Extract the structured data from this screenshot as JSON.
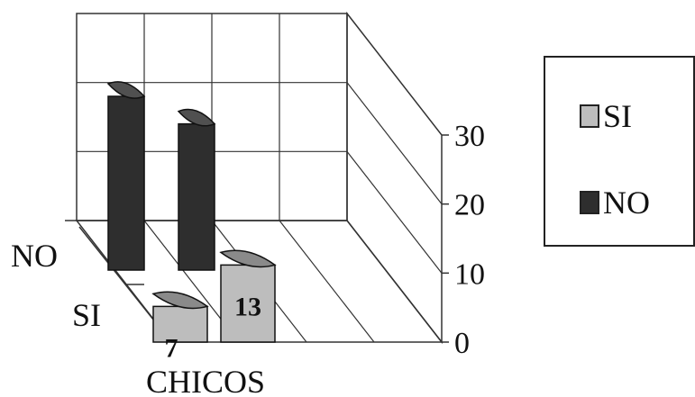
{
  "chart_data": {
    "type": "bar",
    "style": "3d-cylinder",
    "categories": [
      "CHICOS",
      ""
    ],
    "depth_labels": [
      "SI",
      "NO"
    ],
    "series": [
      {
        "name": "SI",
        "values": [
          7,
          13
        ],
        "data_labels": [
          "7",
          "13"
        ],
        "color": "#bdbdbd"
      },
      {
        "name": "NO",
        "values": [
          27,
          23
        ],
        "color": "#2e2e2e"
      }
    ],
    "yticks": [
      "0",
      "10",
      "20",
      "30"
    ],
    "ylim": [
      0,
      30
    ],
    "grid": true,
    "legend_position": "right"
  }
}
